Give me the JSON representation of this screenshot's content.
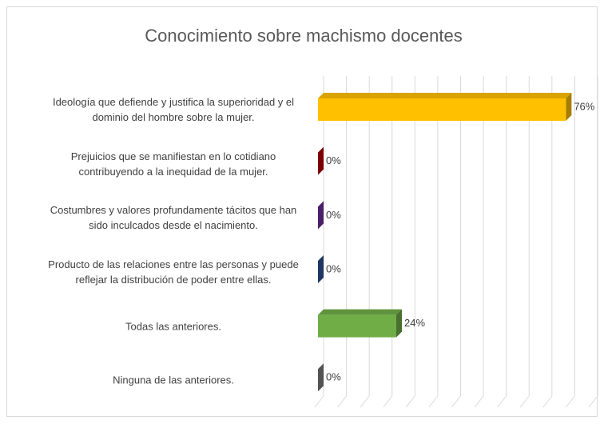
{
  "chart_data": {
    "type": "bar",
    "orientation": "horizontal",
    "title": "Conocimiento sobre machismo docentes",
    "categories": [
      "Ideología que defiende y justifica la superioridad y el dominio del hombre sobre la mujer.",
      "Prejuicios que se manifiestan en lo cotidiano contribuyendo a la inequidad de la mujer.",
      "Costumbres y valores profundamente tácitos que han sido inculcados desde el nacimiento.",
      "Producto de las relaciones entre las personas y puede reflejar la distribución de poder entre ellas.",
      "Todas las anteriores.",
      "Ninguna de las anteriores."
    ],
    "values": [
      76,
      0,
      0,
      0,
      24,
      0
    ],
    "value_labels": [
      "76%",
      "0%",
      "0%",
      "0%",
      "24%",
      "0%"
    ],
    "colors": [
      "#ffc000",
      "#c00000",
      "#7030a0",
      "#2f5597",
      "#70ad47",
      "#7f7f7f"
    ],
    "xlim": [
      0,
      84
    ],
    "xticks": [
      0,
      7,
      14,
      21,
      28,
      35,
      42,
      49,
      56,
      63,
      70,
      77,
      84
    ],
    "grid": true
  }
}
